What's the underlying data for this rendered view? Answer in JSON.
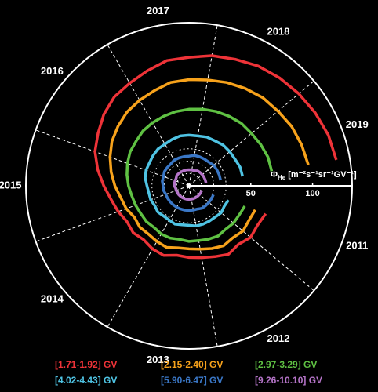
{
  "chart_data": {
    "type": "polar-line",
    "y_label": {
      "symbol": "Φ",
      "subscript": "He",
      "unit": "[m⁻²s⁻¹sr⁻¹GV⁻¹]"
    },
    "x": [
      2011.5,
      2011.75,
      2012.0,
      2012.25,
      2012.5,
      2012.75,
      2013.0,
      2013.25,
      2013.5,
      2013.75,
      2014.0,
      2014.25,
      2014.5,
      2014.75,
      2015.0,
      2015.25,
      2015.5,
      2015.75,
      2016.0,
      2016.25,
      2016.5,
      2016.75,
      2017.0,
      2017.25,
      2017.5,
      2017.75,
      2018.0,
      2018.25,
      2018.5,
      2018.75,
      2019.0,
      2019.25,
      2019.5,
      2019.75
    ],
    "xlim": [
      2011,
      2020
    ],
    "xticks": [
      {
        "value": 2011.5,
        "label": "2011"
      },
      {
        "value": 2012.5,
        "label": "2012"
      },
      {
        "value": 2013.5,
        "label": "2013"
      },
      {
        "value": 2014.5,
        "label": "2014"
      },
      {
        "value": 2015.5,
        "label": "2015"
      },
      {
        "value": 2016.5,
        "label": "2016"
      },
      {
        "value": 2017.5,
        "label": "2017"
      },
      {
        "value": 2018.5,
        "label": "2018"
      },
      {
        "value": 2019.5,
        "label": "2019"
      }
    ],
    "x_grid": [
      2011,
      2012,
      2013,
      2014,
      2015,
      2016,
      2017,
      2018,
      2019
    ],
    "ylim": [
      0,
      132
    ],
    "yticks": [
      50,
      100
    ],
    "y_grid": [
      10,
      20,
      30
    ],
    "series": [
      {
        "name": "[1.71-1.92] GV",
        "color": "#ee3338",
        "values": [
          66,
          64,
          65,
          62,
          64,
          61,
          59,
          58,
          57,
          60,
          59,
          57,
          59,
          58,
          61,
          64,
          69,
          75,
          81,
          85,
          90,
          94,
          96,
          99,
          103,
          104,
          107,
          109,
          112,
          114,
          116,
          118,
          120,
          121
        ]
      },
      {
        "name": "[2.15-2.40] GV",
        "color": "#f7a21b",
        "values": [
          57,
          56,
          57,
          55,
          56,
          54,
          52,
          51,
          51,
          53,
          52,
          51,
          52,
          51,
          54,
          56,
          60,
          64,
          68,
          72,
          75,
          78,
          80,
          82,
          85,
          86,
          87,
          89,
          91,
          93,
          94,
          96,
          97,
          98
        ]
      },
      {
        "name": "[2.97-3.29] GV",
        "color": "#5fc143",
        "values": [
          48,
          47,
          47,
          46,
          47,
          46,
          45,
          45,
          44,
          45,
          45,
          44,
          45,
          45,
          46,
          47,
          49,
          51,
          53,
          55,
          56,
          58,
          59,
          60,
          61,
          62,
          63,
          64,
          65,
          66,
          66,
          67,
          68,
          68
        ]
      },
      {
        "name": "[4.02-4.43] GV",
        "color": "#4fc3e3",
        "values": [
          34,
          33,
          34,
          33,
          33,
          33,
          33,
          32,
          32,
          33,
          32,
          32,
          33,
          32,
          33,
          33,
          34,
          36,
          37,
          37,
          38,
          39,
          39,
          40,
          41,
          41,
          41,
          42,
          42,
          43,
          43,
          43,
          44,
          44
        ]
      },
      {
        "name": "[5.90-6.47] GV",
        "color": "#3a77c6",
        "values": [
          21,
          21,
          21,
          21,
          21,
          20,
          20,
          20,
          20,
          20,
          20,
          20,
          20,
          20,
          20,
          21,
          21,
          22,
          22,
          23,
          23,
          23,
          24,
          24,
          24,
          24,
          25,
          25,
          25,
          25,
          26,
          26,
          26,
          26
        ]
      },
      {
        "name": "[9.26-10.10] GV",
        "color": "#b574c8",
        "values": [
          11,
          11,
          11,
          11,
          11,
          11,
          11,
          11,
          11,
          11,
          11,
          11,
          11,
          11,
          11,
          11,
          12,
          12,
          12,
          12,
          13,
          13,
          13,
          13,
          13,
          13,
          13,
          13,
          14,
          14,
          14,
          14,
          14,
          14
        ]
      }
    ]
  }
}
